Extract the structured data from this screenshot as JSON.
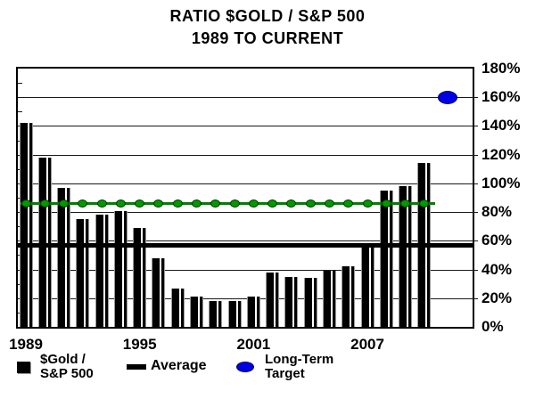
{
  "title": {
    "line1": "RATIO $GOLD / S&P 500",
    "line2": "1989 TO CURRENT"
  },
  "y_axis": {
    "tick_labels": [
      "180%",
      "160%",
      "140%",
      "120%",
      "100%",
      "80%",
      "60%",
      "40%",
      "20%",
      "0%"
    ]
  },
  "x_axis": {
    "tick_labels": [
      "1989",
      "1995",
      "2001",
      "2007"
    ]
  },
  "legend": {
    "gold_sp500": {
      "line1": "$Gold /",
      "line2": "S&P 500"
    },
    "average": "Average",
    "long_term_target": {
      "line1": "Long-Term",
      "line2": "Target"
    }
  },
  "colors": {
    "bar": "#000000",
    "average_line": "#000000",
    "green_line": "#008000",
    "green_dot_fill": "#009900",
    "green_dot_stroke": "#003300",
    "target_fill": "#0000e6",
    "target_stroke": "#000050",
    "grid": "#1a1a1a"
  },
  "chart_data": {
    "type": "bar",
    "title": "RATIO $GOLD / S&P 500 — 1989 TO CURRENT",
    "categories": [
      1989,
      1990,
      1991,
      1992,
      1993,
      1994,
      1995,
      1996,
      1997,
      1998,
      1999,
      2000,
      2001,
      2002,
      2003,
      2004,
      2005,
      2006,
      2007,
      2008,
      2009,
      2010
    ],
    "series": [
      {
        "name": "$Gold / S&P 500",
        "type": "bar",
        "color": "#000000",
        "values": [
          142,
          118,
          97,
          75,
          78,
          81,
          69,
          48,
          27,
          21,
          18,
          18,
          21,
          38,
          35,
          34,
          39,
          42,
          58,
          95,
          98,
          114
        ]
      },
      {
        "name": "Average",
        "type": "hline",
        "color": "#000000",
        "value": 57
      },
      {
        "name": "Long-Term Target",
        "type": "point",
        "color": "#0000e6",
        "value": 160,
        "position": "right of last bar"
      },
      {
        "name": "unlabeled-green-marker-line",
        "type": "hline_with_markers",
        "color": "#009900",
        "value": 86,
        "markers_at": "every bar center"
      }
    ],
    "ylabel": "",
    "xlabel": "",
    "ylim": [
      0,
      180
    ],
    "y_tick_step": 20,
    "y_tick_labels": [
      "0%",
      "20%",
      "40%",
      "60%",
      "80%",
      "100%",
      "120%",
      "140%",
      "160%",
      "180%"
    ],
    "x_tick_labels": [
      "1989",
      "1995",
      "2001",
      "2007"
    ],
    "x_tick_indices": [
      0,
      6,
      12,
      18
    ],
    "grid": "horizontal",
    "legend_position": "bottom"
  }
}
